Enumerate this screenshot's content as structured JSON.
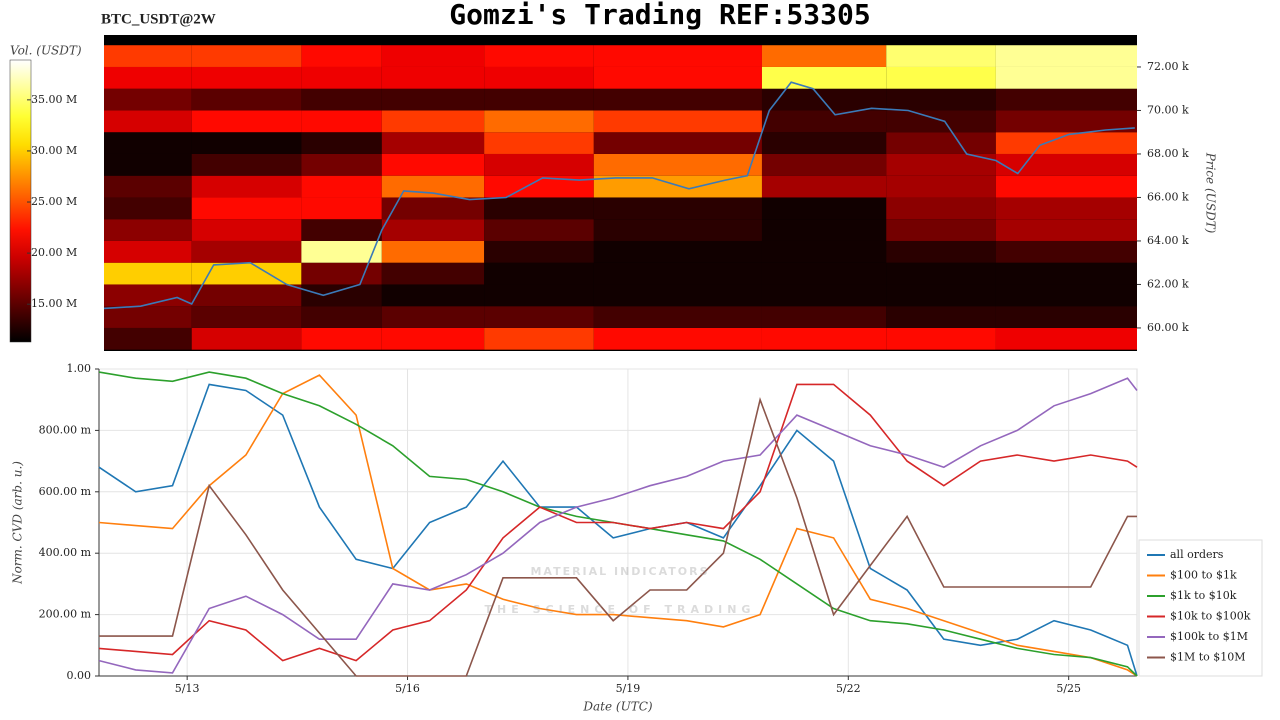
{
  "chart_data": [
    {
      "type": "heatmap",
      "title": "Gomzi's Trading REF:53305",
      "subtitle": "BTC_USDT@2W",
      "colorbar_label": "Vol. (USDT)",
      "ylabel": "Price (USDT)",
      "colormap": "hot",
      "xlim": [
        11.8,
        25.93
      ],
      "ylim": [
        58940,
        73470
      ],
      "yticks": [
        {
          "value": 60000,
          "label": "60.00 k"
        },
        {
          "value": 62000,
          "label": "62.00 k"
        },
        {
          "value": 64000,
          "label": "64.00 k"
        },
        {
          "value": 66000,
          "label": "66.00 k"
        },
        {
          "value": 68000,
          "label": "68.00 k"
        },
        {
          "value": 70000,
          "label": "70.00 k"
        },
        {
          "value": 72000,
          "label": "72.00 k"
        }
      ],
      "zlim": [
        11300000,
        38900000
      ],
      "zticks": [
        {
          "value": 15000000,
          "label": "15.00 M"
        },
        {
          "value": 20000000,
          "label": "20.00 M"
        },
        {
          "value": 25000000,
          "label": "25.00 M"
        },
        {
          "value": 30000000,
          "label": "30.00 M"
        },
        {
          "value": 35000000,
          "label": "35.00 M"
        }
      ],
      "x_bins": [
        11.8,
        13,
        14.5,
        15.6,
        17,
        18.5,
        20.8,
        22.5,
        24,
        25.93
      ],
      "y_bins": [
        59000,
        60000,
        61000,
        62000,
        63000,
        64000,
        65000,
        66000,
        67000,
        68000,
        69000,
        70000,
        71000,
        72000,
        73000
      ],
      "z": [
        [
          14000000,
          20000000,
          22000000,
          22000000,
          24000000,
          22000000,
          22000000,
          22000000,
          21000000
        ],
        [
          16000000,
          15000000,
          14000000,
          15000000,
          15000000,
          14000000,
          14000000,
          13000000,
          13000000
        ],
        [
          17000000,
          16000000,
          13000000,
          12000000,
          12000000,
          12000000,
          12000000,
          12000000,
          12000000
        ],
        [
          30000000,
          30000000,
          16000000,
          14000000,
          12000000,
          12000000,
          12000000,
          12000000,
          12000000
        ],
        [
          20000000,
          18000000,
          36000000,
          26000000,
          13000000,
          12000000,
          12000000,
          13000000,
          14000000
        ],
        [
          17000000,
          20000000,
          14000000,
          18000000,
          15000000,
          13000000,
          12000000,
          16000000,
          18000000
        ],
        [
          14000000,
          22000000,
          22000000,
          16000000,
          13000000,
          13000000,
          12000000,
          17000000,
          18000000
        ],
        [
          15000000,
          20000000,
          22000000,
          26000000,
          22000000,
          28000000,
          18000000,
          18000000,
          22000000
        ],
        [
          12000000,
          14000000,
          16000000,
          22000000,
          20000000,
          26000000,
          16000000,
          18000000,
          20000000
        ],
        [
          12000000,
          12000000,
          13000000,
          18000000,
          24000000,
          16000000,
          13000000,
          16000000,
          24000000
        ],
        [
          20000000,
          22000000,
          22000000,
          24000000,
          26000000,
          24000000,
          14000000,
          14000000,
          16000000
        ],
        [
          16000000,
          15000000,
          14000000,
          14000000,
          14000000,
          14000000,
          13000000,
          13000000,
          14000000
        ],
        [
          21000000,
          21000000,
          21000000,
          21000000,
          21000000,
          22000000,
          34000000,
          34000000,
          36000000
        ],
        [
          24000000,
          24000000,
          22000000,
          21000000,
          22000000,
          22000000,
          26000000,
          35000000,
          36000000
        ]
      ],
      "line_color": "#3b7ab8",
      "line_x": [
        11.8,
        12.3,
        12.8,
        13.0,
        13.3,
        13.8,
        14.3,
        14.8,
        15.3,
        15.6,
        15.9,
        16.3,
        16.8,
        17.3,
        17.8,
        18.3,
        18.8,
        19.3,
        19.8,
        20.3,
        20.6,
        20.9,
        21.2,
        21.5,
        21.8,
        22.3,
        22.8,
        23.3,
        23.6,
        24.0,
        24.3,
        24.6,
        25.0,
        25.5,
        25.9
      ],
      "line_values": [
        60900,
        61000,
        61400,
        61100,
        62900,
        63000,
        62000,
        61500,
        62000,
        64500,
        66300,
        66200,
        65900,
        66000,
        66900,
        66800,
        66900,
        66900,
        66400,
        66800,
        67000,
        70000,
        71300,
        71000,
        69800,
        70100,
        70000,
        69500,
        68000,
        67700,
        67100,
        68400,
        68900,
        69100,
        69200
      ]
    },
    {
      "type": "line",
      "xlabel": "Date (UTC)",
      "ylabel": "Norm. CVD (arb. u.)",
      "annotations": [
        "MATERIAL INDICATORS",
        "THE SCIENCE OF TRADING"
      ],
      "grid": true,
      "legend": "right",
      "xlim": [
        11.8,
        25.93
      ],
      "xticks": [
        {
          "value": 13,
          "label": "5/13"
        },
        {
          "value": 16,
          "label": "5/16"
        },
        {
          "value": 19,
          "label": "5/19"
        },
        {
          "value": 22,
          "label": "5/22"
        },
        {
          "value": 25,
          "label": "5/25"
        }
      ],
      "ylim": [
        0,
        1
      ],
      "yticks": [
        {
          "value": 0,
          "label": "0.00"
        },
        {
          "value": 0.2,
          "label": "200.00 m"
        },
        {
          "value": 0.4,
          "label": "400.00 m"
        },
        {
          "value": 0.6,
          "label": "600.00 m"
        },
        {
          "value": 0.8,
          "label": "800.00 m"
        },
        {
          "value": 1,
          "label": "1.00"
        }
      ],
      "x": [
        11.8,
        12.3,
        12.8,
        13.3,
        13.8,
        14.3,
        14.8,
        15.3,
        15.8,
        16.3,
        16.8,
        17.3,
        17.8,
        18.3,
        18.8,
        19.3,
        19.8,
        20.3,
        20.8,
        21.3,
        21.8,
        22.3,
        22.8,
        23.3,
        23.8,
        24.3,
        24.8,
        25.3,
        25.8,
        25.93
      ],
      "series": [
        {
          "name": "all orders",
          "color": "#1f77b4",
          "values": [
            0.68,
            0.6,
            0.62,
            0.95,
            0.93,
            0.85,
            0.55,
            0.38,
            0.35,
            0.5,
            0.55,
            0.7,
            0.55,
            0.55,
            0.45,
            0.48,
            0.5,
            0.45,
            0.62,
            0.8,
            0.7,
            0.35,
            0.28,
            0.12,
            0.1,
            0.12,
            0.18,
            0.15,
            0.1,
            0.0
          ]
        },
        {
          "name": "$100 to $1k",
          "color": "#ff7f0e",
          "values": [
            0.5,
            0.49,
            0.48,
            0.62,
            0.72,
            0.92,
            0.98,
            0.85,
            0.35,
            0.28,
            0.3,
            0.25,
            0.22,
            0.2,
            0.2,
            0.19,
            0.18,
            0.16,
            0.2,
            0.48,
            0.45,
            0.25,
            0.22,
            0.18,
            0.14,
            0.1,
            0.08,
            0.06,
            0.02,
            0.0
          ]
        },
        {
          "name": "$1k to $10k",
          "color": "#2ca02c",
          "values": [
            0.99,
            0.97,
            0.96,
            0.99,
            0.97,
            0.92,
            0.88,
            0.82,
            0.75,
            0.65,
            0.64,
            0.6,
            0.55,
            0.52,
            0.5,
            0.48,
            0.46,
            0.44,
            0.38,
            0.3,
            0.22,
            0.18,
            0.17,
            0.15,
            0.12,
            0.09,
            0.07,
            0.06,
            0.03,
            0.0
          ]
        },
        {
          "name": "$10k to $100k",
          "color": "#d62728",
          "values": [
            0.09,
            0.08,
            0.07,
            0.18,
            0.15,
            0.05,
            0.09,
            0.05,
            0.15,
            0.18,
            0.28,
            0.45,
            0.55,
            0.5,
            0.5,
            0.48,
            0.5,
            0.48,
            0.6,
            0.95,
            0.95,
            0.85,
            0.7,
            0.62,
            0.7,
            0.72,
            0.7,
            0.72,
            0.7,
            0.68
          ]
        },
        {
          "name": "$100k to $1M",
          "color": "#9467bd",
          "values": [
            0.05,
            0.02,
            0.01,
            0.22,
            0.26,
            0.2,
            0.12,
            0.12,
            0.3,
            0.28,
            0.33,
            0.4,
            0.5,
            0.55,
            0.58,
            0.62,
            0.65,
            0.7,
            0.72,
            0.85,
            0.8,
            0.75,
            0.72,
            0.68,
            0.75,
            0.8,
            0.88,
            0.92,
            0.97,
            0.93
          ]
        },
        {
          "name": "$1M to $10M",
          "color": "#8c564b",
          "values": [
            0.13,
            0.13,
            0.13,
            0.62,
            0.46,
            0.28,
            0.14,
            0.0,
            0.0,
            0.0,
            0.0,
            0.32,
            0.32,
            0.32,
            0.18,
            0.28,
            0.28,
            0.4,
            0.9,
            0.58,
            0.2,
            0.36,
            0.52,
            0.29,
            0.29,
            0.29,
            0.29,
            0.29,
            0.52,
            0.52
          ]
        }
      ]
    }
  ]
}
